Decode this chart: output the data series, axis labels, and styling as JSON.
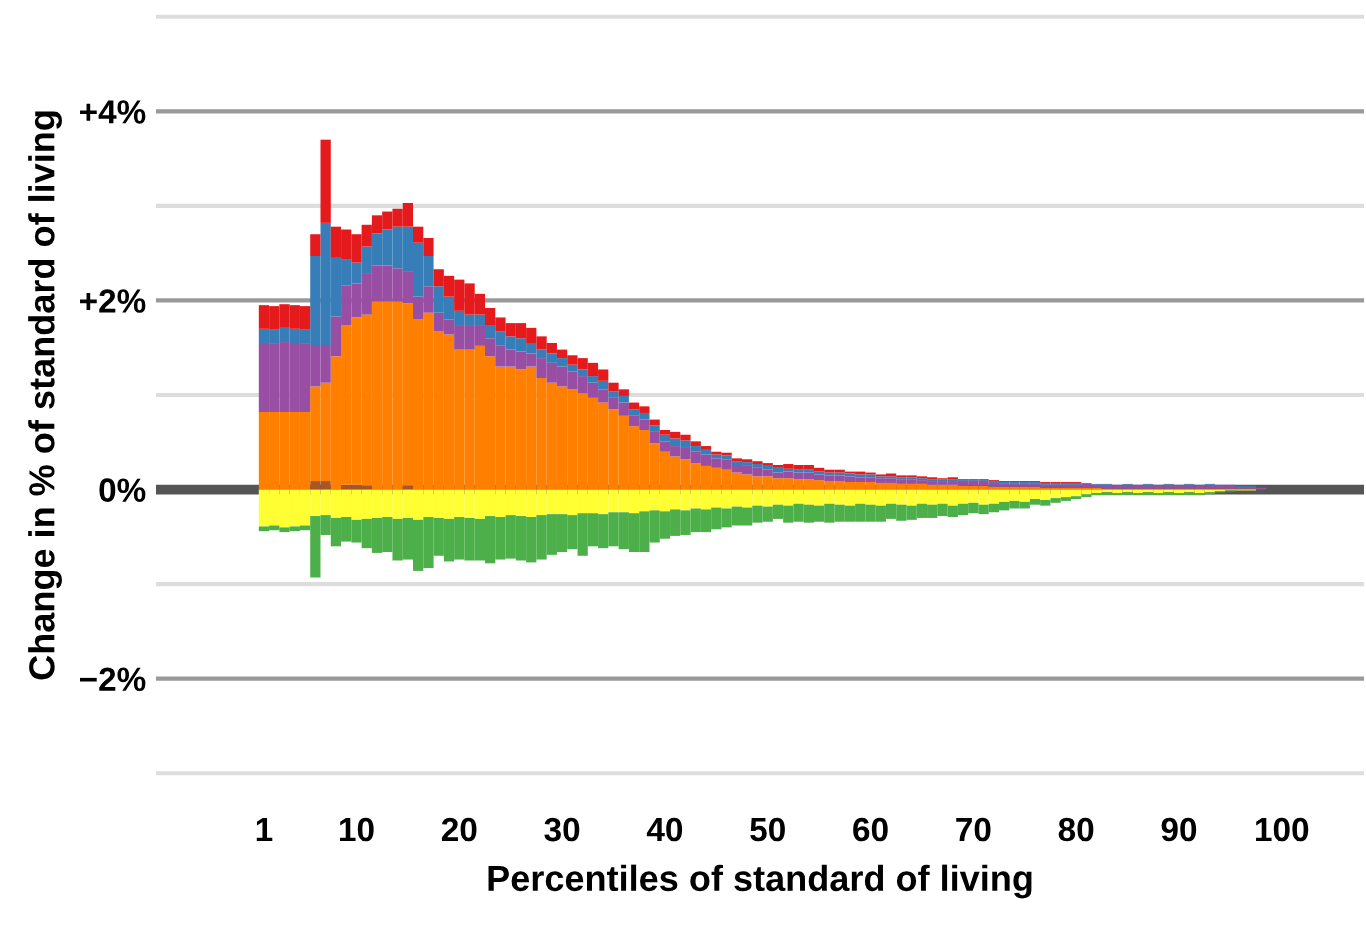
{
  "chart_data": {
    "type": "bar",
    "stacked": true,
    "xlabel": "Percentiles of standard of living",
    "ylabel": "Change in % of standard of living",
    "x": [
      1,
      2,
      3,
      4,
      5,
      6,
      7,
      8,
      9,
      10,
      11,
      12,
      13,
      14,
      15,
      16,
      17,
      18,
      19,
      20,
      21,
      22,
      23,
      24,
      25,
      26,
      27,
      28,
      29,
      30,
      31,
      32,
      33,
      34,
      35,
      36,
      37,
      38,
      39,
      40,
      41,
      42,
      43,
      44,
      45,
      46,
      47,
      48,
      49,
      50,
      51,
      52,
      53,
      54,
      55,
      56,
      57,
      58,
      59,
      60,
      61,
      62,
      63,
      64,
      65,
      66,
      67,
      68,
      69,
      70,
      71,
      72,
      73,
      74,
      75,
      76,
      77,
      78,
      79,
      80,
      81,
      82,
      83,
      84,
      85,
      86,
      87,
      88,
      89,
      90,
      91,
      92,
      93,
      94,
      95,
      96,
      97,
      98,
      99,
      100
    ],
    "xlim": [
      -9.5,
      108
    ],
    "xticks": [
      1,
      10,
      20,
      30,
      40,
      50,
      60,
      70,
      80,
      90,
      100
    ],
    "ylim": [
      -3.05,
      5.05
    ],
    "yticks": [
      {
        "value": 5,
        "label": null
      },
      {
        "value": 4,
        "label": "+4%"
      },
      {
        "value": 3,
        "label": null
      },
      {
        "value": 2,
        "label": "+2%"
      },
      {
        "value": 1,
        "label": null
      },
      {
        "value": 0,
        "label": "0%"
      },
      {
        "value": -1,
        "label": null
      },
      {
        "value": -2,
        "label": "−2%"
      },
      {
        "value": -3,
        "label": null
      }
    ],
    "grid": "y",
    "legend": false,
    "ref_lines": [
      {
        "axis": "y",
        "value": 0,
        "color": "#555555"
      }
    ],
    "series": [
      {
        "color": "#a65628",
        "values": [
          0,
          0,
          0,
          0,
          0,
          0.09,
          0.09,
          0,
          0.05,
          0.05,
          0.04,
          0,
          0,
          0,
          0.04,
          0,
          0,
          0,
          0,
          0,
          0,
          0,
          0,
          0,
          0,
          0,
          0,
          0,
          0,
          0,
          0,
          0,
          0,
          0,
          0,
          0,
          0,
          0,
          0,
          0,
          0,
          0,
          0,
          0,
          0,
          0,
          0,
          0,
          0,
          0,
          0,
          0,
          0,
          0,
          0,
          0,
          0,
          0,
          0,
          0,
          0,
          0,
          0,
          0,
          0,
          0,
          0,
          0,
          0,
          0,
          0,
          0,
          0,
          0,
          0,
          0,
          0,
          0,
          0,
          0,
          0,
          0,
          0,
          0,
          0,
          0,
          0,
          0,
          0,
          0,
          0,
          0,
          0,
          0,
          0,
          0,
          0,
          0,
          0,
          0
        ]
      },
      {
        "color": "#ff7f00",
        "values": [
          0.82,
          0.82,
          0.82,
          0.82,
          0.82,
          1.0,
          1.04,
          1.41,
          1.69,
          1.77,
          1.81,
          1.99,
          1.99,
          1.99,
          1.93,
          1.8,
          1.87,
          1.67,
          1.64,
          1.48,
          1.48,
          1.52,
          1.41,
          1.3,
          1.3,
          1.27,
          1.3,
          1.18,
          1.13,
          1.09,
          1.06,
          1.02,
          0.97,
          0.92,
          0.85,
          0.78,
          0.67,
          0.63,
          0.49,
          0.4,
          0.35,
          0.32,
          0.28,
          0.25,
          0.23,
          0.21,
          0.18,
          0.16,
          0.14,
          0.14,
          0.12,
          0.12,
          0.11,
          0.11,
          0.1,
          0.09,
          0.09,
          0.08,
          0.08,
          0.08,
          0.07,
          0.07,
          0.06,
          0.06,
          0.06,
          0.05,
          0.05,
          0.05,
          0.04,
          0.04,
          0.04,
          0.03,
          0.03,
          0.03,
          0.03,
          0.03,
          0.02,
          0.02,
          0.02,
          0.02,
          0.02,
          0.02,
          0.01,
          0.01,
          0.01,
          0.01,
          0.01,
          0.01,
          0.01,
          0.01,
          0.01,
          0.01,
          0.01,
          0.01,
          0.01,
          0.01,
          0.01,
          0,
          0,
          0
        ]
      },
      {
        "color": "#984ea3",
        "values": [
          0.73,
          0.72,
          0.74,
          0.73,
          0.72,
          0.44,
          0.4,
          0.42,
          0.42,
          0.36,
          0.43,
          0.38,
          0.38,
          0.35,
          0.34,
          0.24,
          0.28,
          0.2,
          0.16,
          0.25,
          0.25,
          0.21,
          0.19,
          0.22,
          0.18,
          0.19,
          0.14,
          0.21,
          0.21,
          0.21,
          0.19,
          0.18,
          0.16,
          0.14,
          0.12,
          0.14,
          0.11,
          0.11,
          0.12,
          0.11,
          0.11,
          0.12,
          0.12,
          0.12,
          0.1,
          0.11,
          0.08,
          0.09,
          0.09,
          0.07,
          0.06,
          0.07,
          0.07,
          0.07,
          0.06,
          0.06,
          0.06,
          0.06,
          0.05,
          0.05,
          0.05,
          0.05,
          0.05,
          0.05,
          0.04,
          0.04,
          0.04,
          0.04,
          0.04,
          0.04,
          0.04,
          0.04,
          0.03,
          0.03,
          0.03,
          0.03,
          0.03,
          0.03,
          0.03,
          0.03,
          0.04,
          0.03,
          0.04,
          0.03,
          0.04,
          0.03,
          0.04,
          0.03,
          0.04,
          0.03,
          0.04,
          0.03,
          0.04,
          0.03,
          0.03,
          0.02,
          0.02,
          0.02,
          0,
          0
        ]
      },
      {
        "color": "#377eb8",
        "values": [
          0.15,
          0.15,
          0.15,
          0.15,
          0.15,
          0.94,
          1.29,
          0.62,
          0.27,
          0.22,
          0.29,
          0.34,
          0.38,
          0.44,
          0.47,
          0.57,
          0.32,
          0.28,
          0.24,
          0.16,
          0.12,
          0.12,
          0.14,
          0.15,
          0.14,
          0.14,
          0.11,
          0.09,
          0.1,
          0.09,
          0.07,
          0.07,
          0.07,
          0.09,
          0.07,
          0.07,
          0.07,
          0.07,
          0.07,
          0.07,
          0.08,
          0.08,
          0.06,
          0.05,
          0.04,
          0.04,
          0.04,
          0.04,
          0.04,
          0.05,
          0.05,
          0.03,
          0.03,
          0.03,
          0.03,
          0.03,
          0.03,
          0.03,
          0.03,
          0.03,
          0.02,
          0.02,
          0.02,
          0.02,
          0.02,
          0.02,
          0.02,
          0.02,
          0.02,
          0.02,
          0.02,
          0.02,
          0.02,
          0.02,
          0.02,
          0.02,
          0.02,
          0.02,
          0.02,
          0.02,
          0.01,
          0.01,
          0.01,
          0.01,
          0.01,
          0.01,
          0.01,
          0.01,
          0.01,
          0.01,
          0.01,
          0.01,
          0.01,
          0.01,
          0.01,
          0.01,
          0.01,
          0,
          0,
          0
        ]
      },
      {
        "color": "#e41a1c",
        "values": [
          0.25,
          0.25,
          0.25,
          0.25,
          0.25,
          0.23,
          0.88,
          0.33,
          0.32,
          0.3,
          0.23,
          0.19,
          0.19,
          0.19,
          0.25,
          0.17,
          0.19,
          0.18,
          0.22,
          0.33,
          0.33,
          0.22,
          0.18,
          0.15,
          0.14,
          0.16,
          0.16,
          0.14,
          0.11,
          0.09,
          0.1,
          0.12,
          0.14,
          0.12,
          0.09,
          0.07,
          0.07,
          0.07,
          0.06,
          0.05,
          0.07,
          0.06,
          0.05,
          0.04,
          0.03,
          0.03,
          0.03,
          0.03,
          0.03,
          0.02,
          0.03,
          0.05,
          0.05,
          0.05,
          0.04,
          0.03,
          0.03,
          0.02,
          0.03,
          0.02,
          0.02,
          0.03,
          0.02,
          0.02,
          0.02,
          0.02,
          0.01,
          0.02,
          0.01,
          0.01,
          0.01,
          0.01,
          0.01,
          0.01,
          0.01,
          0.01,
          0.01,
          0.01,
          0.01,
          0.01,
          0,
          0,
          0,
          0,
          0,
          0,
          0,
          0,
          0,
          0,
          0,
          0,
          0,
          0,
          0,
          0,
          0,
          0,
          0,
          0
        ]
      },
      {
        "color": "#ffff33",
        "values": [
          -0.39,
          -0.38,
          -0.4,
          -0.39,
          -0.38,
          -0.28,
          -0.27,
          -0.3,
          -0.29,
          -0.32,
          -0.31,
          -0.3,
          -0.29,
          -0.31,
          -0.3,
          -0.32,
          -0.29,
          -0.3,
          -0.31,
          -0.29,
          -0.3,
          -0.31,
          -0.28,
          -0.29,
          -0.27,
          -0.28,
          -0.29,
          -0.27,
          -0.26,
          -0.26,
          -0.27,
          -0.25,
          -0.25,
          -0.26,
          -0.24,
          -0.24,
          -0.25,
          -0.23,
          -0.22,
          -0.23,
          -0.21,
          -0.22,
          -0.2,
          -0.21,
          -0.19,
          -0.2,
          -0.18,
          -0.19,
          -0.17,
          -0.18,
          -0.16,
          -0.17,
          -0.15,
          -0.16,
          -0.17,
          -0.15,
          -0.16,
          -0.17,
          -0.15,
          -0.16,
          -0.17,
          -0.15,
          -0.16,
          -0.17,
          -0.15,
          -0.16,
          -0.15,
          -0.17,
          -0.15,
          -0.14,
          -0.16,
          -0.15,
          -0.13,
          -0.12,
          -0.13,
          -0.1,
          -0.11,
          -0.09,
          -0.08,
          -0.07,
          -0.05,
          -0.04,
          -0.03,
          -0.04,
          -0.03,
          -0.04,
          -0.03,
          -0.04,
          -0.03,
          -0.04,
          -0.03,
          -0.04,
          -0.03,
          -0.02,
          -0.01,
          -0.01,
          -0.01,
          0,
          0,
          0
        ]
      },
      {
        "color": "#4daf4a",
        "values": [
          -0.05,
          -0.05,
          -0.05,
          -0.05,
          -0.05,
          -0.65,
          -0.21,
          -0.3,
          -0.26,
          -0.24,
          -0.31,
          -0.37,
          -0.37,
          -0.44,
          -0.44,
          -0.54,
          -0.54,
          -0.4,
          -0.45,
          -0.45,
          -0.45,
          -0.44,
          -0.5,
          -0.45,
          -0.46,
          -0.47,
          -0.48,
          -0.47,
          -0.43,
          -0.4,
          -0.36,
          -0.45,
          -0.35,
          -0.36,
          -0.36,
          -0.39,
          -0.41,
          -0.43,
          -0.34,
          -0.29,
          -0.28,
          -0.26,
          -0.25,
          -0.24,
          -0.23,
          -0.2,
          -0.2,
          -0.19,
          -0.18,
          -0.16,
          -0.15,
          -0.18,
          -0.19,
          -0.19,
          -0.17,
          -0.2,
          -0.18,
          -0.17,
          -0.19,
          -0.18,
          -0.17,
          -0.16,
          -0.17,
          -0.15,
          -0.15,
          -0.14,
          -0.13,
          -0.12,
          -0.12,
          -0.11,
          -0.1,
          -0.09,
          -0.09,
          -0.08,
          -0.07,
          -0.06,
          -0.06,
          -0.05,
          -0.04,
          -0.03,
          -0.03,
          -0.02,
          -0.03,
          -0.02,
          -0.03,
          -0.02,
          -0.03,
          -0.02,
          -0.03,
          -0.02,
          -0.03,
          -0.02,
          -0.02,
          -0.01,
          -0.01,
          0,
          0,
          0,
          0,
          0
        ]
      }
    ]
  }
}
